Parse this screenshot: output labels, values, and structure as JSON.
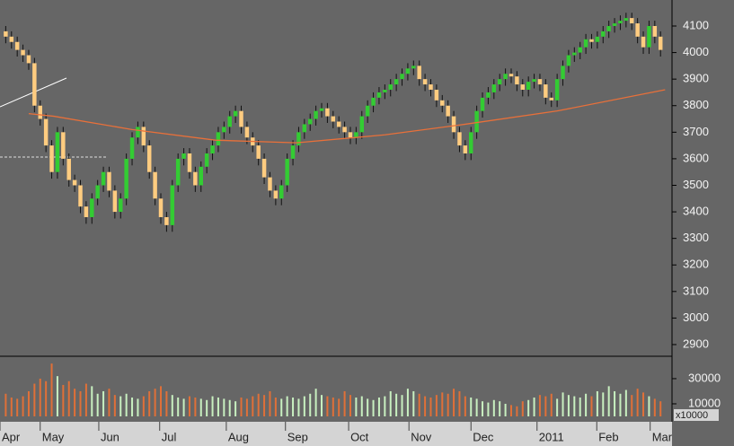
{
  "chart_data": {
    "type": "candlestick",
    "x": [
      0,
      1,
      2,
      3,
      4,
      5,
      6,
      7,
      8,
      9,
      10,
      11,
      12,
      13,
      14,
      15,
      16,
      17,
      18,
      19,
      20,
      21,
      22,
      23,
      24,
      25,
      26,
      27,
      28,
      29,
      30,
      31,
      32,
      33,
      34,
      35,
      36,
      37,
      38,
      39,
      40,
      41,
      42,
      43,
      44,
      45,
      46,
      47,
      48,
      49,
      50,
      51,
      52,
      53,
      54,
      55,
      56,
      57,
      58,
      59,
      60,
      61,
      62,
      63,
      64,
      65,
      66,
      67,
      68,
      69,
      70,
      71,
      72,
      73,
      74,
      75,
      76,
      77,
      78,
      79,
      80,
      81,
      82,
      83,
      84,
      85,
      86,
      87,
      88,
      89,
      90,
      91,
      92,
      93,
      94,
      95,
      96,
      97,
      98,
      99,
      100,
      101,
      102,
      103,
      104,
      105,
      106,
      107,
      108,
      109,
      110,
      111,
      112,
      113,
      114
    ],
    "open": [
      4080,
      4060,
      4040,
      4010,
      3990,
      3960,
      3800,
      3750,
      3650,
      3550,
      3700,
      3600,
      3520,
      3500,
      3420,
      3380,
      3450,
      3500,
      3550,
      3480,
      3400,
      3450,
      3600,
      3680,
      3720,
      3650,
      3550,
      3450,
      3380,
      3350,
      3500,
      3600,
      3620,
      3550,
      3500,
      3570,
      3620,
      3650,
      3700,
      3720,
      3760,
      3780,
      3720,
      3680,
      3650,
      3600,
      3530,
      3480,
      3450,
      3500,
      3600,
      3650,
      3700,
      3730,
      3750,
      3780,
      3790,
      3760,
      3740,
      3720,
      3700,
      3680,
      3700,
      3760,
      3800,
      3830,
      3850,
      3860,
      3880,
      3900,
      3920,
      3940,
      3950,
      3900,
      3880,
      3860,
      3820,
      3800,
      3760,
      3700,
      3650,
      3620,
      3700,
      3780,
      3830,
      3850,
      3880,
      3900,
      3920,
      3910,
      3880,
      3860,
      3890,
      3900,
      3880,
      3830,
      3820,
      3900,
      3950,
      3990,
      4000,
      4020,
      4050,
      4040,
      4060,
      4080,
      4100,
      4110,
      4120,
      4130,
      4110,
      4060,
      4020,
      4100,
      4060
    ],
    "high": [
      4100,
      4080,
      4060,
      4030,
      4010,
      3980,
      3820,
      3770,
      3670,
      3720,
      3720,
      3620,
      3540,
      3520,
      3440,
      3470,
      3520,
      3570,
      3570,
      3500,
      3470,
      3620,
      3700,
      3740,
      3740,
      3670,
      3570,
      3470,
      3400,
      3520,
      3620,
      3640,
      3640,
      3570,
      3590,
      3640,
      3670,
      3720,
      3740,
      3780,
      3800,
      3800,
      3740,
      3700,
      3670,
      3620,
      3550,
      3500,
      3520,
      3620,
      3670,
      3720,
      3750,
      3770,
      3800,
      3810,
      3810,
      3780,
      3760,
      3740,
      3720,
      3720,
      3780,
      3820,
      3850,
      3870,
      3880,
      3900,
      3920,
      3940,
      3960,
      3970,
      3970,
      3920,
      3900,
      3880,
      3840,
      3820,
      3780,
      3720,
      3670,
      3720,
      3800,
      3850,
      3870,
      3900,
      3920,
      3940,
      3940,
      3930,
      3900,
      3910,
      3920,
      3920,
      3900,
      3850,
      3920,
      3970,
      4010,
      4020,
      4040,
      4070,
      4070,
      4080,
      4100,
      4120,
      4130,
      4140,
      4150,
      4150,
      4130,
      4080,
      4120,
      4120,
      4080
    ],
    "low": [
      4035,
      4015,
      3985,
      3965,
      3935,
      3775,
      3725,
      3625,
      3525,
      3525,
      3575,
      3495,
      3475,
      3395,
      3355,
      3355,
      3425,
      3475,
      3455,
      3375,
      3375,
      3425,
      3575,
      3655,
      3625,
      3525,
      3425,
      3355,
      3325,
      3325,
      3475,
      3575,
      3525,
      3475,
      3475,
      3545,
      3595,
      3625,
      3675,
      3695,
      3735,
      3695,
      3655,
      3625,
      3575,
      3505,
      3455,
      3425,
      3425,
      3475,
      3575,
      3625,
      3675,
      3705,
      3725,
      3755,
      3735,
      3715,
      3695,
      3675,
      3655,
      3655,
      3675,
      3735,
      3775,
      3805,
      3825,
      3835,
      3855,
      3875,
      3895,
      3915,
      3875,
      3855,
      3835,
      3795,
      3775,
      3735,
      3675,
      3625,
      3595,
      3595,
      3675,
      3755,
      3805,
      3825,
      3855,
      3875,
      3885,
      3855,
      3835,
      3835,
      3865,
      3855,
      3805,
      3795,
      3795,
      3875,
      3925,
      3965,
      3975,
      3995,
      4015,
      4015,
      4035,
      4055,
      4075,
      4085,
      4095,
      4085,
      4035,
      3995,
      3995,
      4035,
      3985
    ],
    "close": [
      4060,
      4040,
      4010,
      3990,
      3960,
      3800,
      3750,
      3650,
      3550,
      3700,
      3600,
      3520,
      3500,
      3420,
      3380,
      3450,
      3500,
      3550,
      3480,
      3400,
      3450,
      3600,
      3680,
      3720,
      3650,
      3550,
      3450,
      3380,
      3350,
      3500,
      3600,
      3620,
      3550,
      3500,
      3570,
      3620,
      3650,
      3700,
      3720,
      3760,
      3780,
      3720,
      3680,
      3650,
      3600,
      3530,
      3480,
      3450,
      3500,
      3600,
      3650,
      3700,
      3730,
      3750,
      3780,
      3790,
      3760,
      3740,
      3720,
      3700,
      3680,
      3700,
      3760,
      3800,
      3830,
      3850,
      3860,
      3880,
      3900,
      3920,
      3940,
      3950,
      3900,
      3880,
      3860,
      3820,
      3800,
      3760,
      3700,
      3650,
      3620,
      3700,
      3780,
      3830,
      3850,
      3880,
      3900,
      3920,
      3910,
      3880,
      3860,
      3890,
      3900,
      3880,
      3830,
      3820,
      3900,
      3950,
      3990,
      4000,
      4020,
      4050,
      4040,
      4060,
      4080,
      4100,
      4110,
      4120,
      4130,
      4110,
      4060,
      4020,
      4100,
      4060,
      4010
    ],
    "up_color": "#33cc33",
    "down_color": "#ffcc80",
    "xlim": [
      -1,
      116
    ],
    "xticks": [
      {
        "value": -1,
        "label": "Apr"
      },
      {
        "value": 6.0,
        "label": "May"
      },
      {
        "value": 16.2,
        "label": "Jun"
      },
      {
        "value": 26.8,
        "label": "Jul"
      },
      {
        "value": 38.4,
        "label": "Aug"
      },
      {
        "value": 48.7,
        "label": "Sep"
      },
      {
        "value": 59.7,
        "label": "Oct"
      },
      {
        "value": 70.2,
        "label": "Nov"
      },
      {
        "value": 81.0,
        "label": "Dec"
      },
      {
        "value": 92.5,
        "label": "2011"
      },
      {
        "value": 102.9,
        "label": "Feb"
      },
      {
        "value": 112.2,
        "label": "Mar"
      }
    ],
    "ylim": [
      2856,
      4198
    ],
    "yticks": [
      2900,
      3000,
      3100,
      3200,
      3300,
      3400,
      3500,
      3600,
      3700,
      3800,
      3900,
      4000,
      4100
    ],
    "moving_average": {
      "color": "#e8703a",
      "x": [
        4,
        8.4,
        22,
        36.5,
        50.6,
        66,
        80,
        96,
        114.8
      ],
      "values": [
        3770,
        3760,
        3710,
        3670,
        3660,
        3690,
        3730,
        3780,
        3860
      ]
    },
    "volume": {
      "values": [
        18000,
        15000,
        14000,
        16000,
        20000,
        26000,
        30000,
        28000,
        42000,
        32000,
        25000,
        28000,
        22000,
        20000,
        26000,
        24000,
        18000,
        20000,
        22000,
        17000,
        16000,
        18000,
        15000,
        14000,
        16000,
        20000,
        22000,
        24000,
        20000,
        17000,
        15000,
        14000,
        16000,
        15000,
        14000,
        13000,
        16000,
        15000,
        14000,
        13000,
        12000,
        15000,
        14000,
        16000,
        18000,
        17000,
        20000,
        15000,
        14000,
        16000,
        15000,
        14000,
        16000,
        18000,
        22000,
        17000,
        16000,
        15000,
        14000,
        20000,
        17000,
        15000,
        16000,
        14000,
        13000,
        15000,
        16000,
        20000,
        18000,
        17000,
        22000,
        20000,
        18000,
        16000,
        15000,
        17000,
        19000,
        18000,
        22000,
        20000,
        16000,
        15000,
        14000,
        12000,
        11000,
        13000,
        12000,
        10000,
        9000,
        8000,
        12000,
        13000,
        15000,
        17000,
        16000,
        18000,
        14000,
        19000,
        17000,
        16000,
        15000,
        18000,
        16000,
        20000,
        19000,
        24000,
        20000,
        18000,
        21000,
        17000,
        22000,
        19000,
        16000,
        14000,
        12000
      ],
      "up_color": "#c8f0c0",
      "down_color": "#e07038",
      "ylim": [
        0,
        47800
      ],
      "yticks": [
        10000,
        30000
      ],
      "unit_label": "x10000"
    }
  }
}
